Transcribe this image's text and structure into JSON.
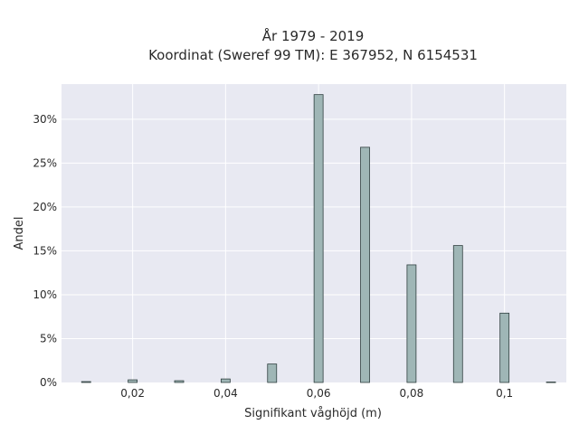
{
  "chart_data": {
    "type": "bar",
    "title_lines": [
      "År 1979 - 2019",
      "Koordinat (Sweref 99 TM): E 367952, N 6154531"
    ],
    "xlabel": "Signifikant våghöjd (m)",
    "ylabel": "Andel",
    "x": [
      0.01,
      0.02,
      0.03,
      0.04,
      0.05,
      0.06,
      0.07,
      0.08,
      0.09,
      0.1,
      0.11
    ],
    "values": [
      0.1,
      0.3,
      0.2,
      0.4,
      2.1,
      32.8,
      26.8,
      13.4,
      15.6,
      7.9,
      0.05
    ],
    "xlim": [
      0.0047,
      0.1133
    ],
    "ylim": [
      0,
      34
    ],
    "xticks": [
      0.02,
      0.04,
      0.06,
      0.08,
      0.1
    ],
    "xtick_labels": [
      "0,02",
      "0,04",
      "0,06",
      "0,08",
      "0,1"
    ],
    "yticks": [
      0,
      5,
      10,
      15,
      20,
      25,
      30
    ],
    "ytick_labels": [
      "0%",
      "5%",
      "10%",
      "15%",
      "20%",
      "25%",
      "30%"
    ],
    "grid": true,
    "colors": {
      "bar_fill": "#9fb6b6",
      "bar_stroke": "#2f3f3f",
      "plot_bg": "#e8e9f2",
      "grid": "#ffffff"
    }
  }
}
